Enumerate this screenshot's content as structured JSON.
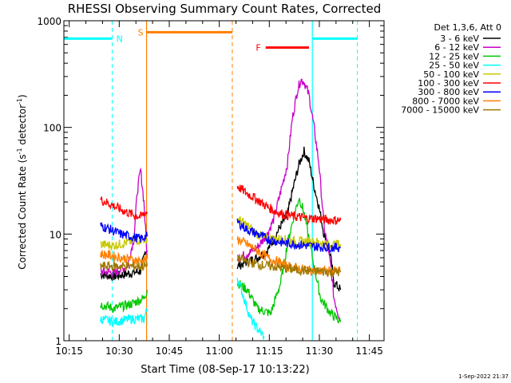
{
  "chart_data": {
    "type": "line",
    "title": "RHESSI Observing Summary Count Rates, Corrected",
    "xlabel": "Start Time (08-Sep-17 10:13:22)",
    "ylabel": "Corrected Count Rate (s-1 detector-1)",
    "ylabel_parts": {
      "base": "Corrected Count Rate (s",
      "sup1": "-1",
      "mid": " detector",
      "sup2": "-1",
      "end": ")"
    },
    "timestamp": "1-Sep-2022 21:37",
    "x_unit": "minutes since 10:13:22",
    "xlim": [
      0,
      96
    ],
    "y_scale": "log",
    "ylim": [
      1,
      1000
    ],
    "x_ticks": [
      {
        "label": "10:15",
        "min": 1.6
      },
      {
        "label": "10:30",
        "min": 16.6
      },
      {
        "label": "10:45",
        "min": 31.6
      },
      {
        "label": "11:00",
        "min": 46.6
      },
      {
        "label": "11:15",
        "min": 61.6
      },
      {
        "label": "11:30",
        "min": 76.6
      },
      {
        "label": "11:45",
        "min": 91.6
      }
    ],
    "y_ticks": [
      {
        "label": "1",
        "value": 1
      },
      {
        "label": "10",
        "value": 10
      },
      {
        "label": "100",
        "value": 100
      },
      {
        "label": "1000",
        "value": 1000
      }
    ],
    "legend": {
      "header": "Det 1,3,6, Att 0",
      "placement": "right"
    },
    "series": [
      {
        "name": "3 - 6 keV",
        "color": "#000000",
        "points": [
          [
            11,
            4.2
          ],
          [
            15,
            4.0
          ],
          [
            20,
            4.3
          ],
          [
            23,
            4.5
          ],
          [
            24.5,
            7.0
          ],
          [
            25,
            7
          ],
          [
            52,
            5.0
          ],
          [
            55,
            5.5
          ],
          [
            58,
            6.0
          ],
          [
            61,
            7.0
          ],
          [
            63,
            9.0
          ],
          [
            65,
            12
          ],
          [
            67,
            15
          ],
          [
            68.5,
            25
          ],
          [
            70.5,
            45
          ],
          [
            72,
            60
          ],
          [
            73.5,
            48
          ],
          [
            75,
            28
          ],
          [
            76.5,
            18
          ],
          [
            78,
            10
          ],
          [
            80,
            6
          ],
          [
            81,
            3.5
          ],
          [
            83,
            3.0
          ]
        ]
      },
      {
        "name": "6 - 12 keV",
        "color": "#c800c8",
        "points": [
          [
            11,
            4.5
          ],
          [
            15,
            4.3
          ],
          [
            19,
            5.0
          ],
          [
            21,
            9
          ],
          [
            22,
            25
          ],
          [
            23,
            40
          ],
          [
            24,
            20
          ],
          [
            25,
            6
          ],
          [
            52,
            6.0
          ],
          [
            55,
            6.5
          ],
          [
            58,
            7.5
          ],
          [
            61,
            10
          ],
          [
            63,
            14
          ],
          [
            65,
            25
          ],
          [
            67,
            45
          ],
          [
            68.5,
            120
          ],
          [
            70,
            220
          ],
          [
            71,
            280
          ],
          [
            72,
            270
          ],
          [
            73.5,
            200
          ],
          [
            75,
            100
          ],
          [
            76.5,
            45
          ],
          [
            78,
            12
          ],
          [
            80,
            5
          ],
          [
            81,
            2.5
          ],
          [
            83,
            1.5
          ]
        ]
      },
      {
        "name": "12 - 25 keV",
        "color": "#00c800",
        "points": [
          [
            11,
            2.2
          ],
          [
            15,
            2.0
          ],
          [
            20,
            2.2
          ],
          [
            24,
            2.5
          ],
          [
            25,
            3
          ],
          [
            52,
            3.5
          ],
          [
            55,
            3.0
          ],
          [
            58,
            2.0
          ],
          [
            62,
            1.8
          ],
          [
            65,
            3.5
          ],
          [
            67,
            8
          ],
          [
            69,
            15
          ],
          [
            70.5,
            22
          ],
          [
            72,
            16
          ],
          [
            73.5,
            9
          ],
          [
            75,
            5
          ],
          [
            77,
            2.5
          ],
          [
            80,
            1.8
          ],
          [
            83,
            1.5
          ]
        ]
      },
      {
        "name": "25 - 50 keV",
        "color": "#00ffff",
        "points": [
          [
            11,
            1.6
          ],
          [
            15,
            1.5
          ],
          [
            20,
            1.6
          ],
          [
            24,
            1.6
          ],
          [
            25,
            2
          ],
          [
            52,
            4.0
          ],
          [
            54,
            2.5
          ],
          [
            56,
            1.6
          ],
          [
            58,
            1.3
          ],
          [
            60,
            1.1
          ]
        ]
      },
      {
        "name": "50 - 100 keV",
        "color": "#c8c800",
        "points": [
          [
            11,
            8.0
          ],
          [
            15,
            7.8
          ],
          [
            20,
            8.5
          ],
          [
            24,
            9
          ],
          [
            25,
            9
          ],
          [
            52,
            14
          ],
          [
            55,
            12
          ],
          [
            58,
            10
          ],
          [
            61,
            9
          ],
          [
            65,
            9
          ],
          [
            70,
            8.5
          ],
          [
            75,
            8.5
          ],
          [
            80,
            8
          ],
          [
            83,
            8
          ]
        ]
      },
      {
        "name": "100 - 300 keV",
        "color": "#ff0000",
        "points": [
          [
            11,
            21
          ],
          [
            14,
            19
          ],
          [
            17,
            17
          ],
          [
            20,
            15.5
          ],
          [
            23,
            14.5
          ],
          [
            24.5,
            16
          ],
          [
            25,
            16
          ],
          [
            52,
            28
          ],
          [
            55,
            24
          ],
          [
            58,
            21
          ],
          [
            61,
            18
          ],
          [
            64,
            16
          ],
          [
            67,
            15
          ],
          [
            70,
            14.5
          ],
          [
            73,
            14
          ],
          [
            76,
            14
          ],
          [
            80,
            13.5
          ],
          [
            83,
            13.5
          ]
        ]
      },
      {
        "name": "300 - 800 keV",
        "color": "#0000ff",
        "points": [
          [
            11,
            12
          ],
          [
            14,
            11
          ],
          [
            17,
            10
          ],
          [
            20,
            9.5
          ],
          [
            23,
            9.0
          ],
          [
            24.5,
            9.5
          ],
          [
            25,
            9.5
          ],
          [
            52,
            13
          ],
          [
            55,
            11
          ],
          [
            58,
            10
          ],
          [
            61,
            9
          ],
          [
            64,
            8.5
          ],
          [
            67,
            8.2
          ],
          [
            70,
            8.0
          ],
          [
            73,
            7.8
          ],
          [
            76,
            7.6
          ],
          [
            80,
            7.5
          ],
          [
            83,
            7.5
          ]
        ]
      },
      {
        "name": "800 - 7000 keV",
        "color": "#ff8000",
        "points": [
          [
            11,
            6.5
          ],
          [
            14,
            6.3
          ],
          [
            17,
            6.0
          ],
          [
            20,
            5.8
          ],
          [
            23,
            5.6
          ],
          [
            24.5,
            5.8
          ],
          [
            25,
            5.8
          ],
          [
            52,
            9
          ],
          [
            55,
            8
          ],
          [
            58,
            7
          ],
          [
            61,
            6
          ],
          [
            64,
            5.5
          ],
          [
            67,
            5.0
          ],
          [
            70,
            4.8
          ],
          [
            73,
            4.6
          ],
          [
            76,
            4.5
          ],
          [
            80,
            4.5
          ],
          [
            83,
            4.5
          ]
        ]
      },
      {
        "name": "7000 - 15000 keV",
        "color": "#a07800",
        "points": [
          [
            11,
            5.0
          ],
          [
            15,
            5.0
          ],
          [
            20,
            5.0
          ],
          [
            24,
            5.0
          ],
          [
            25,
            5
          ],
          [
            52,
            6
          ],
          [
            55,
            5.5
          ],
          [
            58,
            5.2
          ],
          [
            62,
            5.0
          ],
          [
            66,
            4.8
          ],
          [
            70,
            4.6
          ],
          [
            75,
            4.5
          ],
          [
            80,
            4.4
          ],
          [
            83,
            4.4
          ]
        ]
      }
    ],
    "annotations": [
      {
        "label": "N",
        "color": "#00ffff",
        "bar_from_min": 0,
        "bar_to_min": 14.5,
        "bar_value": 680,
        "dashed_at_min": 14.5
      },
      {
        "label": "S",
        "color": "#ff8000",
        "bar_from_min": 24.8,
        "bar_to_min": 50.5,
        "bar_value": 780,
        "solid_at_min": 24.8,
        "dashed_at_min": 50.5
      },
      {
        "label": "F",
        "color": "#ff0000",
        "bar_from_min": 60.5,
        "bar_to_min": 73.5,
        "bar_value": 560
      },
      {
        "label": "",
        "color": "#00ffff",
        "bar_from_min": 74.5,
        "bar_to_min": 88,
        "bar_value": 680,
        "solid_at_min": 74.5,
        "dashed_at_min": 88
      }
    ],
    "grid": false
  }
}
